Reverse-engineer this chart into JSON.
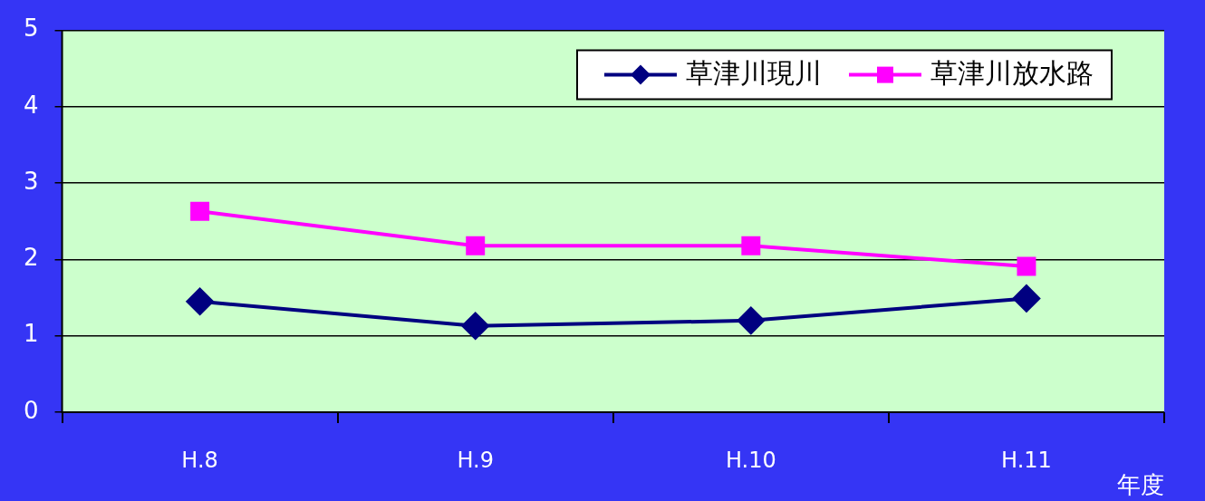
{
  "chart_data": {
    "type": "line",
    "xlabel": "年度",
    "categories": [
      "H.8",
      "H.9",
      "H.10",
      "H.11"
    ],
    "series": [
      {
        "name": "草津川現川",
        "color": "#000080",
        "marker": "diamond",
        "values": [
          1.45,
          1.13,
          1.2,
          1.49
        ]
      },
      {
        "name": "草津川放水路",
        "color": "#ff00ff",
        "marker": "square",
        "values": [
          2.63,
          2.18,
          2.18,
          1.91
        ]
      }
    ],
    "ylim": [
      0,
      5
    ],
    "yticks": [
      0,
      1,
      2,
      3,
      4,
      5
    ],
    "grid": "y",
    "legend": "top right",
    "line_style": "solid"
  }
}
